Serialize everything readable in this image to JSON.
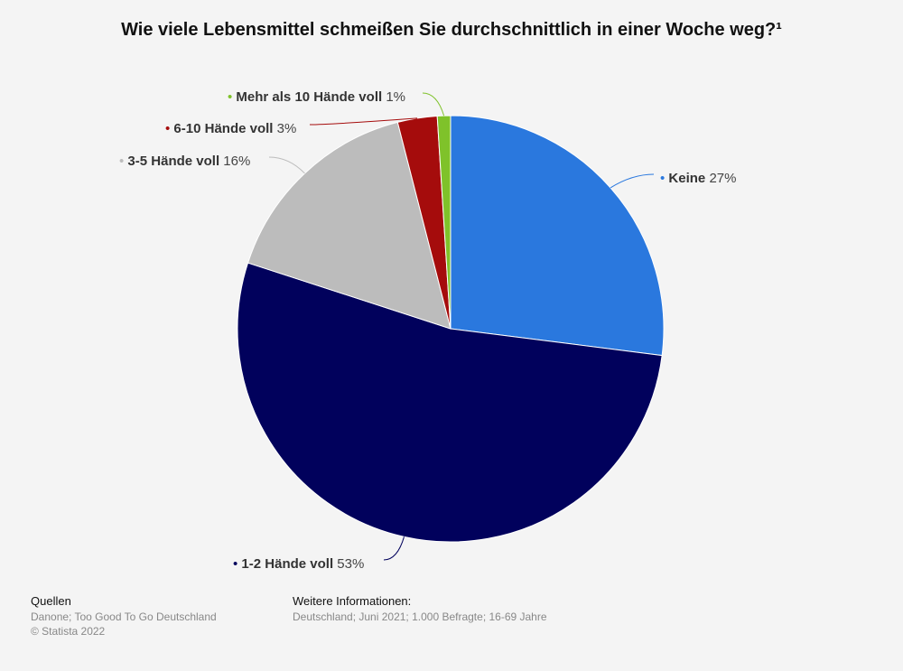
{
  "chart_data": {
    "type": "pie",
    "title": "Wie viele Lebensmittel schmeißen Sie durchschnittlich in einer Woche weg?¹",
    "slices": [
      {
        "label": "Keine",
        "value": 27,
        "value_label": "27%",
        "color": "#2a78de"
      },
      {
        "label": "1-2 Hände voll",
        "value": 53,
        "value_label": "53%",
        "color": "#01015c"
      },
      {
        "label": "3-5 Hände voll",
        "value": 16,
        "value_label": "16%",
        "color": "#bcbcbc"
      },
      {
        "label": "6-10 Hände voll",
        "value": 3,
        "value_label": "3%",
        "color": "#a50c0c"
      },
      {
        "label": "Mehr als 10 Hände voll",
        "value": 1,
        "value_label": "1%",
        "color": "#7fc22a"
      }
    ]
  },
  "footer": {
    "sources_heading": "Quellen",
    "sources_line1": "Danone; Too Good To Go Deutschland",
    "sources_line2": "© Statista 2022",
    "info_heading": "Weitere Informationen:",
    "info_line": "Deutschland; Juni 2021; 1.000 Befragte; 16-69 Jahre"
  }
}
